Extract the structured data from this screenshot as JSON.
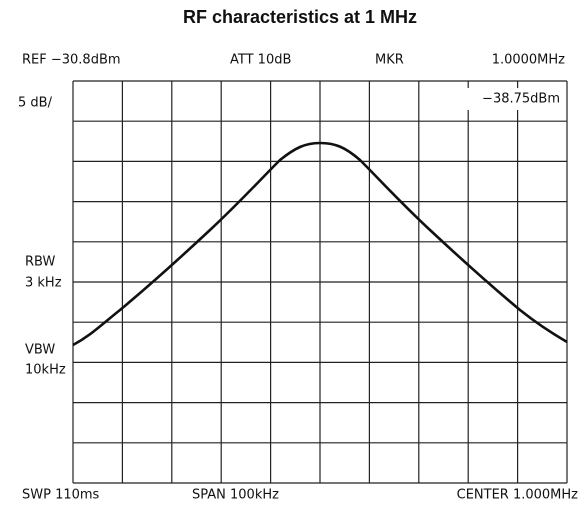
{
  "title": "RF characteristics at 1 MHz",
  "header": {
    "ref": "REF −30.8dBm",
    "att": "ATT 10dB",
    "mkr": "MKR",
    "mkr_freq": "1.0000MHz",
    "mkr_level": "−38.75dBm"
  },
  "left": {
    "scale": "5 dB/",
    "rbw": "RBW",
    "rbw_value": "3 kHz",
    "vbw": "VBW",
    "vbw_value": "10kHz"
  },
  "footer": {
    "sweep": "SWP 110ms",
    "span": "SPAN 100kHz",
    "center": "CENTER 1.000MHz"
  }
}
